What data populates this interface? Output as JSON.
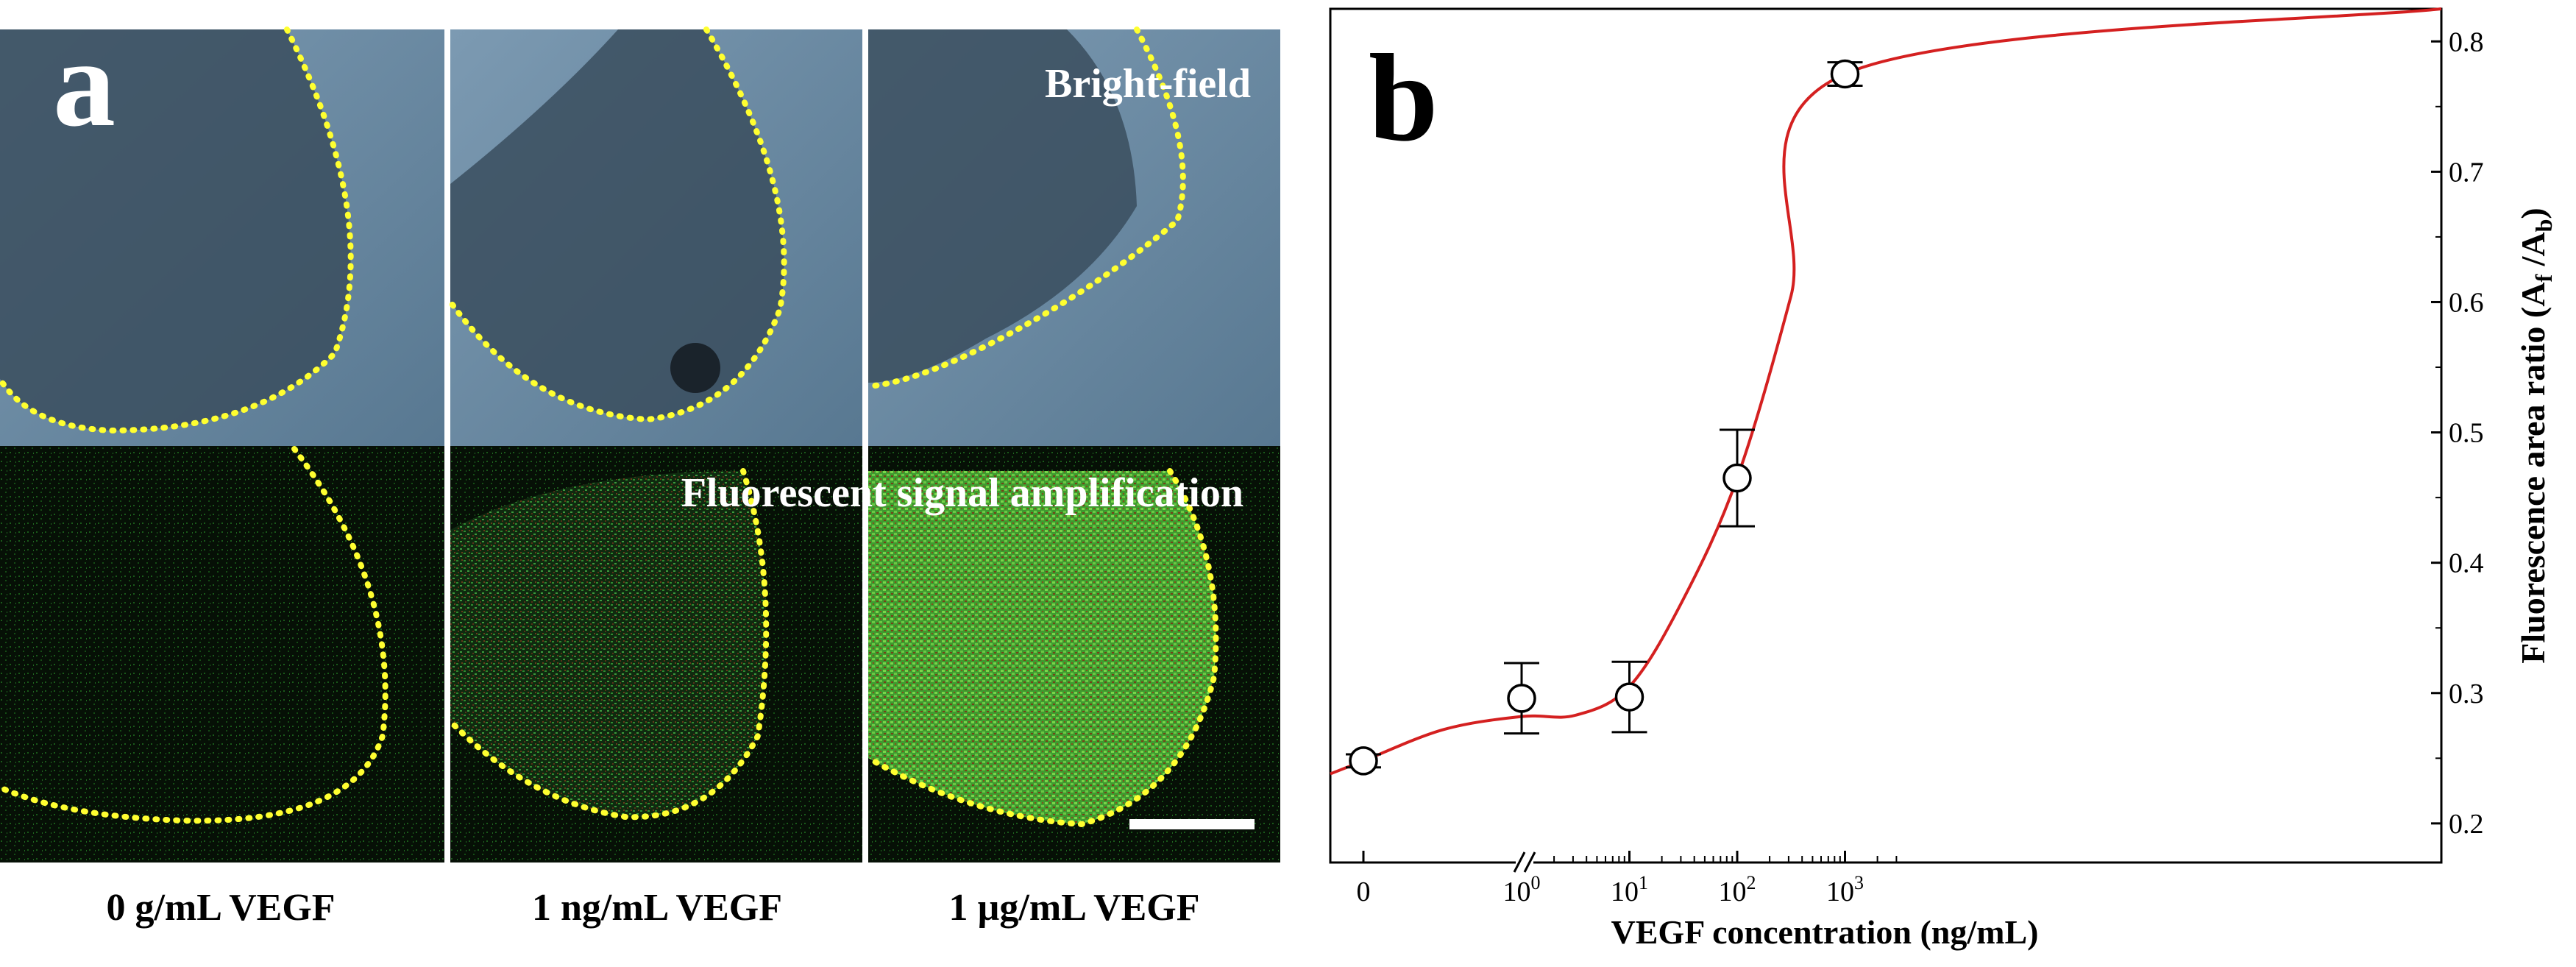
{
  "panel_a": {
    "letter": "a",
    "bright_field_label": "Bright-field",
    "fluorescent_label": "Fluorescent signal amplification",
    "captions": [
      "0 g/mL VEGF",
      "1 ng/mL VEGF",
      "1 µg/mL VEGF"
    ],
    "colors": {
      "bright": "#5f7f98",
      "dark_region": "#3b4e5e",
      "fluor_bg": "#061006",
      "fluor_green": "#3cc83c",
      "outline": "#ffff30"
    },
    "fluorescence_intensity": [
      0.15,
      0.45,
      0.85
    ]
  },
  "chart_data": {
    "type": "scatter",
    "panel_letter": "b",
    "title": "",
    "xlabel": "VEGF concentration (ng/mL)",
    "ylabel": "Fluorescence area ratio (A",
    "ylabel_sub_f": "f",
    "ylabel_mid": " /A",
    "ylabel_sub_b": "b",
    "ylabel_end": ")",
    "x_scale": "log with broken axis at 0",
    "x_tick_labels": [
      {
        "base": "0",
        "exp": ""
      },
      {
        "base": "10",
        "exp": "0"
      },
      {
        "base": "10",
        "exp": "1"
      },
      {
        "base": "10",
        "exp": "2"
      },
      {
        "base": "10",
        "exp": "3"
      }
    ],
    "ylim": [
      0.17,
      0.825
    ],
    "y_ticks": [
      0.2,
      0.3,
      0.4,
      0.5,
      0.6,
      0.7,
      0.8
    ],
    "y_tick_labels": [
      "0.2",
      "0.3",
      "0.4",
      "0.5",
      "0.6",
      "0.7",
      "0.8"
    ],
    "points": [
      {
        "x": 0,
        "y": 0.248,
        "err": 0.005
      },
      {
        "x": 1,
        "y": 0.296,
        "err": 0.027
      },
      {
        "x": 10,
        "y": 0.297,
        "err": 0.027
      },
      {
        "x": 100,
        "y": 0.465,
        "err": 0.037
      },
      {
        "x": 1000,
        "y": 0.775,
        "err": 0.009
      }
    ],
    "fit_curve": {
      "color": "#d42020",
      "y_at_left_edge": 0.238,
      "y_at_right_edge": 0.825,
      "log_x_samples": [
        0,
        0.5,
        1,
        1.5,
        2,
        2.5,
        3
      ],
      "y_samples": [
        0.282,
        0.283,
        0.305,
        0.372,
        0.465,
        0.605,
        0.775
      ]
    },
    "legend": "none"
  }
}
